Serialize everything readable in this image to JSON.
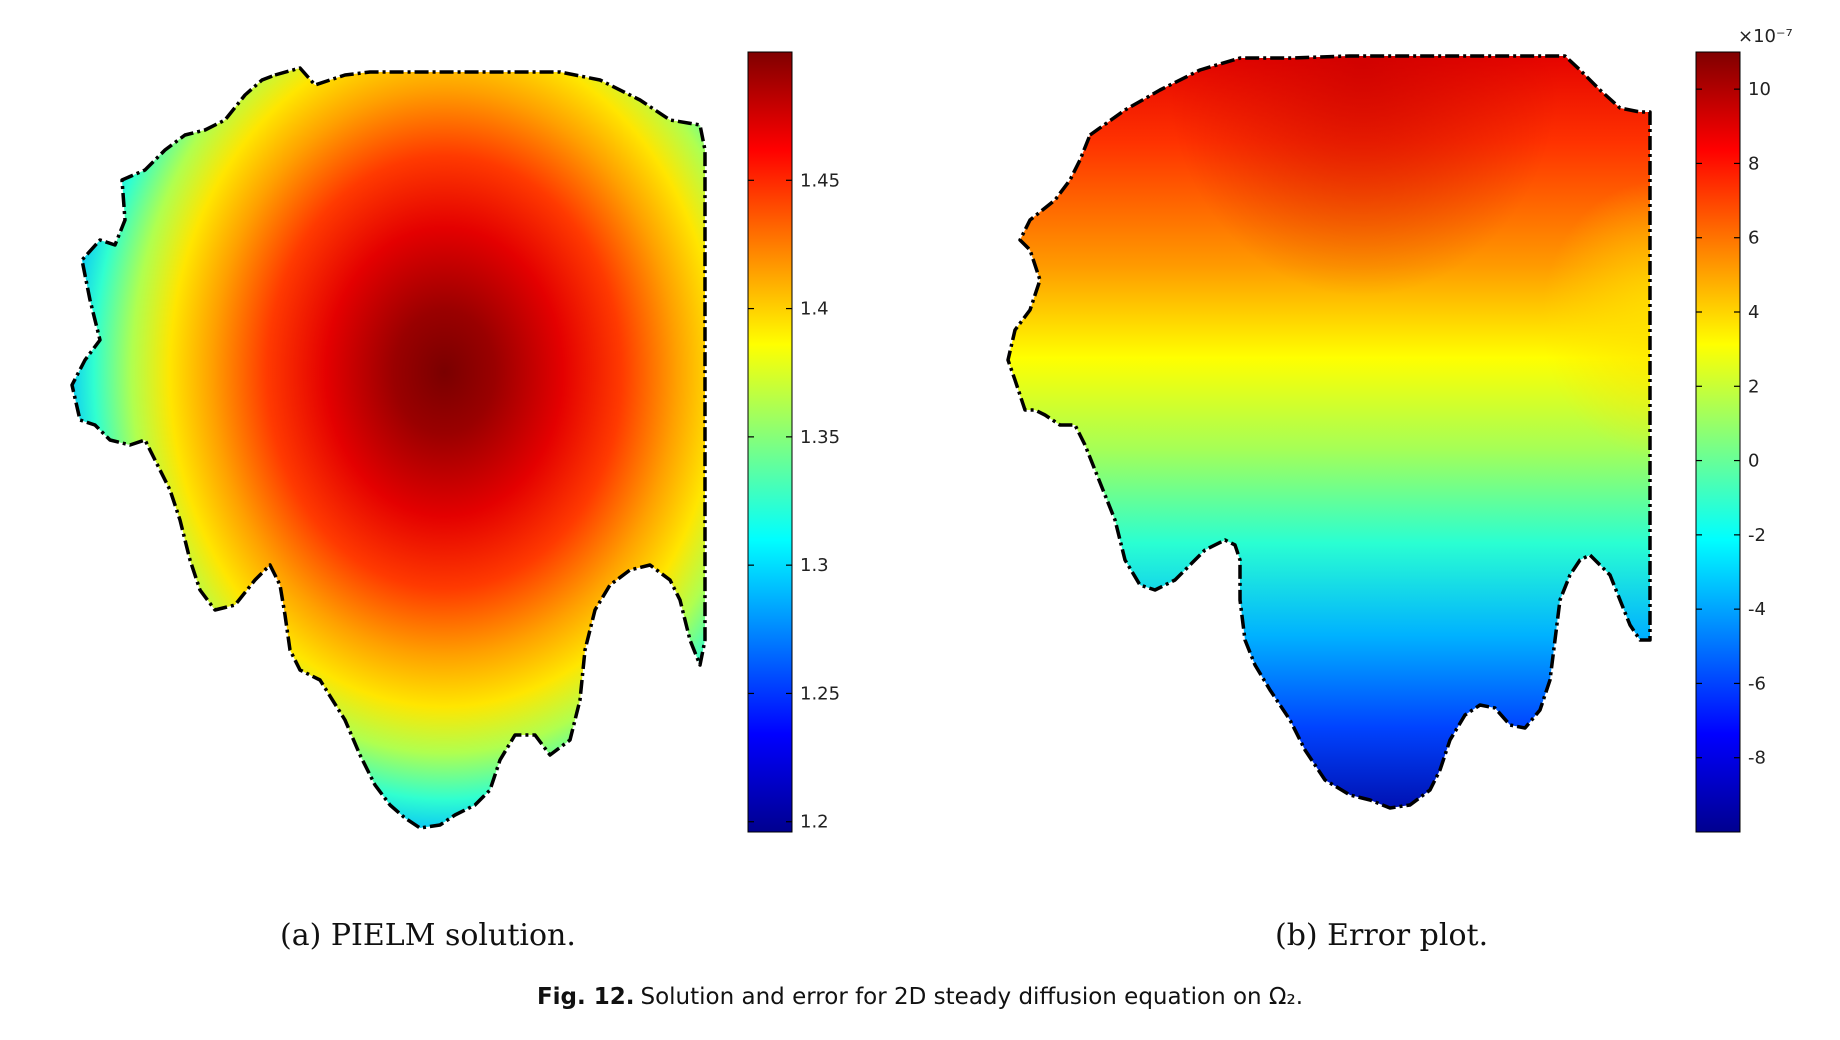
{
  "chart_data": [
    {
      "type": "heatmap",
      "subcaption": "(a) PIELM solution.",
      "colormap": "jet",
      "colorbar": {
        "range": [
          1.196,
          1.5
        ],
        "ticks": [
          "1.2",
          "1.25",
          "1.3",
          "1.35",
          "1.4",
          "1.45"
        ],
        "tick_values": [
          1.2,
          1.25,
          1.3,
          1.35,
          1.4,
          1.45
        ],
        "exponent": ""
      },
      "field": {
        "kind": "radial",
        "max": 1.5,
        "min": 1.196,
        "peak_relative": [
          0.585,
          0.4
        ]
      }
    },
    {
      "type": "heatmap",
      "subcaption": "(b) Error plot.",
      "colormap": "jet",
      "colorbar": {
        "range": [
          -10,
          11
        ],
        "ticks": [
          "10",
          "8",
          "6",
          "4",
          "2",
          "0",
          "-2",
          "-4",
          "-6",
          "-8"
        ],
        "tick_values": [
          10,
          8,
          6,
          4,
          2,
          0,
          -2,
          -4,
          -6,
          -8
        ],
        "exponent": "×10⁻⁷"
      },
      "field": {
        "kind": "vertical_gradient",
        "max": 10.8,
        "min": -9.8
      }
    }
  ],
  "caption": {
    "label": "Fig. 12.",
    "text": "Solution and error for 2D steady diffusion equation on Ω₂."
  },
  "colors": {
    "boundary": "#000000",
    "background": "#ffffff"
  }
}
